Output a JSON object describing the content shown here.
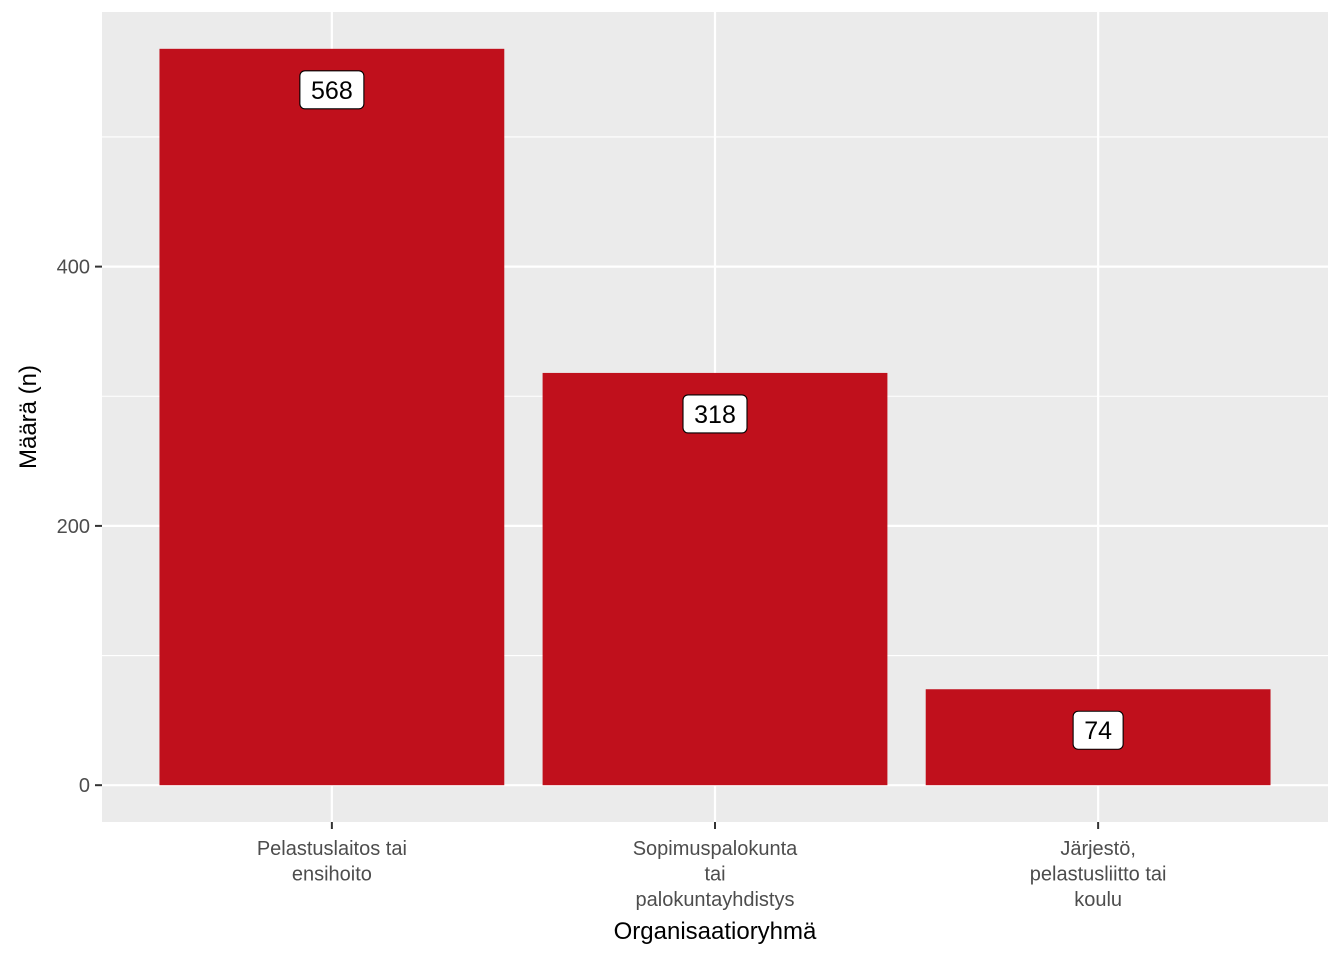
{
  "chart_data": {
    "type": "bar",
    "title": "",
    "xlabel": "Organisaatioryhmä",
    "ylabel": "Määrä (n)",
    "categories": [
      [
        "Pelastuslaitos tai",
        "ensihoito"
      ],
      [
        "Sopimuspalokunta",
        "tai",
        "palokuntayhdistys"
      ],
      [
        "Järjestö,",
        "pelastusliitto tai",
        "koulu"
      ]
    ],
    "values": [
      568,
      318,
      74
    ],
    "data_labels": [
      "568",
      "318",
      "74"
    ],
    "yticks": [
      0,
      200,
      400
    ],
    "ytick_labels": [
      "0",
      "200",
      "400"
    ],
    "ylim": [
      -28.4,
      596.4
    ],
    "grid": true,
    "legend": "none",
    "colors": {
      "bar": "#c0101c",
      "panel": "#ebebeb",
      "grid": "#ffffff",
      "label_fill": "#ffffff",
      "label_border": "#000000"
    }
  }
}
